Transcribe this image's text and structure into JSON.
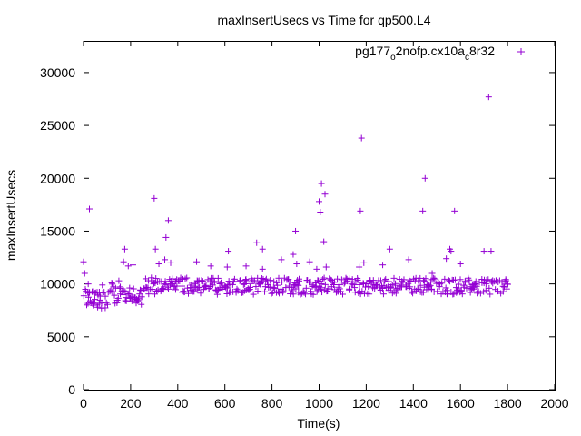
{
  "chart_data": {
    "type": "scatter",
    "title": "maxInsertUsecs vs Time for qp500.L4",
    "xlabel": "Time(s)",
    "ylabel": "maxInsertUsecs",
    "xlim": [
      0,
      2000
    ],
    "ylim": [
      0,
      33000
    ],
    "xticks": [
      0,
      200,
      400,
      600,
      800,
      1000,
      1200,
      1400,
      1600,
      1800,
      2000
    ],
    "yticks": [
      0,
      5000,
      10000,
      15000,
      20000,
      25000,
      30000
    ],
    "grid": false,
    "marker": "plus",
    "legend_position": "top-right",
    "series": [
      {
        "legend_parts": [
          "pg177",
          "o",
          "2nofp.cx10a",
          "c",
          "8r32"
        ],
        "color": "#9400d3",
        "baseline": {
          "x_start": 0,
          "x_end": 1800,
          "step": 5,
          "segments": [
            {
              "x_end": 100,
              "y_mean": 8600,
              "y_spread": 900
            },
            {
              "x_end": 250,
              "y_mean": 9000,
              "y_spread": 1000
            },
            {
              "x_end": 1800,
              "y_mean": 9800,
              "y_spread": 800
            }
          ]
        },
        "points": [
          {
            "x": 0,
            "y": 12100
          },
          {
            "x": 5,
            "y": 11000
          },
          {
            "x": 10,
            "y": 9300
          },
          {
            "x": 20,
            "y": 10000
          },
          {
            "x": 25,
            "y": 17100
          },
          {
            "x": 40,
            "y": 8200
          },
          {
            "x": 60,
            "y": 7800
          },
          {
            "x": 80,
            "y": 9900
          },
          {
            "x": 120,
            "y": 10100
          },
          {
            "x": 150,
            "y": 10300
          },
          {
            "x": 170,
            "y": 12100
          },
          {
            "x": 175,
            "y": 13300
          },
          {
            "x": 190,
            "y": 11700
          },
          {
            "x": 210,
            "y": 11800
          },
          {
            "x": 230,
            "y": 8400
          },
          {
            "x": 300,
            "y": 18100
          },
          {
            "x": 305,
            "y": 13300
          },
          {
            "x": 320,
            "y": 11900
          },
          {
            "x": 345,
            "y": 12300
          },
          {
            "x": 350,
            "y": 14400
          },
          {
            "x": 360,
            "y": 16000
          },
          {
            "x": 370,
            "y": 12000
          },
          {
            "x": 480,
            "y": 12100
          },
          {
            "x": 540,
            "y": 11700
          },
          {
            "x": 610,
            "y": 11600
          },
          {
            "x": 615,
            "y": 13100
          },
          {
            "x": 690,
            "y": 11700
          },
          {
            "x": 735,
            "y": 13900
          },
          {
            "x": 760,
            "y": 13300
          },
          {
            "x": 760,
            "y": 11400
          },
          {
            "x": 840,
            "y": 12300
          },
          {
            "x": 890,
            "y": 12800
          },
          {
            "x": 900,
            "y": 15000
          },
          {
            "x": 905,
            "y": 11900
          },
          {
            "x": 960,
            "y": 12100
          },
          {
            "x": 990,
            "y": 11400
          },
          {
            "x": 1000,
            "y": 17800
          },
          {
            "x": 1005,
            "y": 16800
          },
          {
            "x": 1010,
            "y": 19500
          },
          {
            "x": 1020,
            "y": 14000
          },
          {
            "x": 1025,
            "y": 18500
          },
          {
            "x": 1030,
            "y": 11600
          },
          {
            "x": 1170,
            "y": 11600
          },
          {
            "x": 1175,
            "y": 16900
          },
          {
            "x": 1180,
            "y": 23800
          },
          {
            "x": 1190,
            "y": 12000
          },
          {
            "x": 1300,
            "y": 13300
          },
          {
            "x": 1270,
            "y": 11800
          },
          {
            "x": 1380,
            "y": 12300
          },
          {
            "x": 1440,
            "y": 16900
          },
          {
            "x": 1450,
            "y": 20000
          },
          {
            "x": 1480,
            "y": 11000
          },
          {
            "x": 1540,
            "y": 12400
          },
          {
            "x": 1555,
            "y": 13300
          },
          {
            "x": 1560,
            "y": 13100
          },
          {
            "x": 1575,
            "y": 16900
          },
          {
            "x": 1600,
            "y": 11900
          },
          {
            "x": 1700,
            "y": 13100
          },
          {
            "x": 1720,
            "y": 27700
          },
          {
            "x": 1730,
            "y": 13100
          }
        ]
      }
    ]
  }
}
